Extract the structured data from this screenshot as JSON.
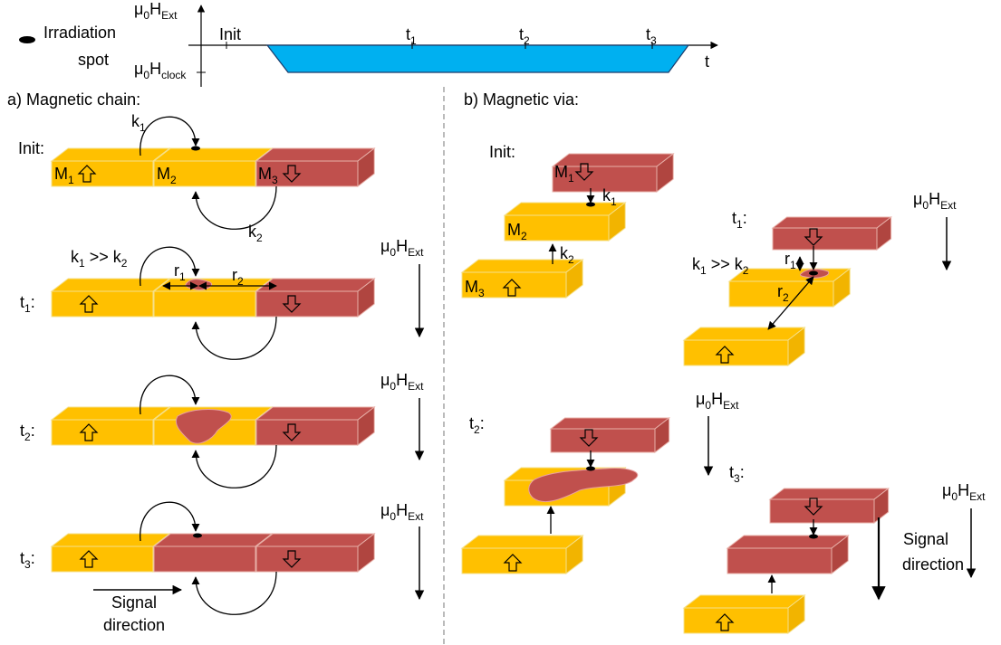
{
  "legend": {
    "spot": [
      "Irradiation",
      "spot"
    ]
  },
  "timeline": {
    "field": [
      "μ",
      "0",
      "H",
      "Ext"
    ],
    "clock": [
      "μ",
      "0",
      "H",
      "clock"
    ],
    "init": "Init",
    "t1": [
      "t",
      "1"
    ],
    "t2": [
      "t",
      "2"
    ],
    "t3": [
      "t",
      "3"
    ],
    "t": "t"
  },
  "chain": {
    "title": "a) Magnetic chain:",
    "init_label": "Init:",
    "k1": [
      "k",
      "1"
    ],
    "k2": [
      "k",
      "2"
    ],
    "m1": [
      "M",
      "1"
    ],
    "m2": [
      "M",
      "2"
    ],
    "m3": [
      "M",
      "3"
    ],
    "t1": {
      "label": [
        "t",
        "1",
        ":"
      ],
      "ratio": [
        "k",
        "1",
        " >> k",
        "2"
      ],
      "r1": [
        "r",
        "1"
      ],
      "r2": [
        "r",
        "2"
      ],
      "field": [
        "μ",
        "0",
        "H",
        "Ext"
      ]
    },
    "t2": {
      "label": [
        "t",
        "2",
        ":"
      ],
      "field": [
        "μ",
        "0",
        "H",
        "Ext"
      ]
    },
    "t3": {
      "label": [
        "t",
        "3",
        ":"
      ],
      "field": [
        "μ",
        "0",
        "H",
        "Ext"
      ]
    },
    "signal": [
      "Signal",
      "direction"
    ]
  },
  "via": {
    "title": "b) Magnetic via:",
    "init_label": "Init:",
    "m1": [
      "M",
      "1"
    ],
    "k1": [
      "k",
      "1"
    ],
    "m2": [
      "M",
      "2"
    ],
    "k2": [
      "k",
      "2"
    ],
    "m3": [
      "M",
      "3"
    ],
    "t1": {
      "label": [
        "t",
        "1",
        ":"
      ],
      "field": [
        "μ",
        "0",
        "H",
        "Ext"
      ],
      "ratio": [
        "k",
        "1",
        " >> k",
        "2"
      ],
      "r1": [
        "r",
        "1"
      ],
      "r2": [
        "r",
        "2"
      ]
    },
    "t2": {
      "label": [
        "t",
        "2",
        ":"
      ],
      "field": [
        "μ",
        "0",
        "H",
        "Ext"
      ]
    },
    "t3": {
      "label": [
        "t",
        "3",
        ":"
      ],
      "field": [
        "μ",
        "0",
        "H",
        "Ext"
      ]
    },
    "signal": [
      "Signal",
      "direction"
    ]
  }
}
